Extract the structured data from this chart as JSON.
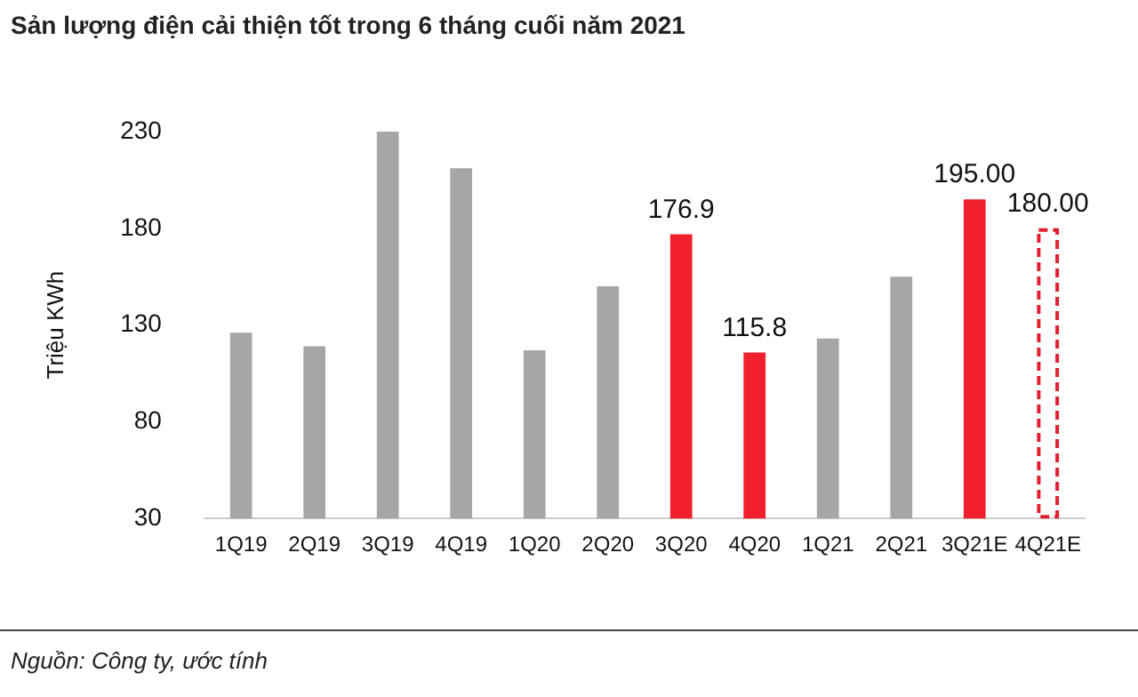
{
  "chart_data": {
    "type": "bar",
    "title": "Sản lượng điện cải thiện tốt trong 6 tháng cuối năm 2021",
    "ylabel": "Triệu KWh",
    "categories": [
      "1Q19",
      "2Q19",
      "3Q19",
      "4Q19",
      "1Q20",
      "2Q20",
      "3Q20",
      "4Q20",
      "1Q21",
      "2Q21",
      "3Q21E",
      "4Q21E"
    ],
    "series": [
      {
        "values": [
          126,
          119,
          230,
          211,
          117,
          150,
          176.9,
          115.8,
          123,
          155,
          195,
          null
        ],
        "colors": [
          "#a6a6a6",
          "#a6a6a6",
          "#a6a6a6",
          "#a6a6a6",
          "#a6a6a6",
          "#a6a6a6",
          "#f0202e",
          "#f0202e",
          "#a6a6a6",
          "#a6a6a6",
          "#f0202e",
          "#f0202e"
        ],
        "value_labels": [
          null,
          null,
          null,
          null,
          null,
          null,
          "176.9",
          "115.8",
          null,
          null,
          "195.00",
          null
        ]
      },
      {
        "values": [
          null,
          null,
          null,
          null,
          null,
          null,
          null,
          null,
          null,
          null,
          null,
          180
        ],
        "color": "#e0202e",
        "line_style": "dashed",
        "value_labels": [
          null,
          null,
          null,
          null,
          null,
          null,
          null,
          null,
          null,
          null,
          null,
          "180.00"
        ]
      }
    ],
    "ylim": [
      30,
      230
    ],
    "yticks": [
      30,
      80,
      130,
      180,
      230
    ],
    "grid": false,
    "legend": false,
    "annotations": [
      "Nguồn: Công ty, ước tính"
    ]
  }
}
